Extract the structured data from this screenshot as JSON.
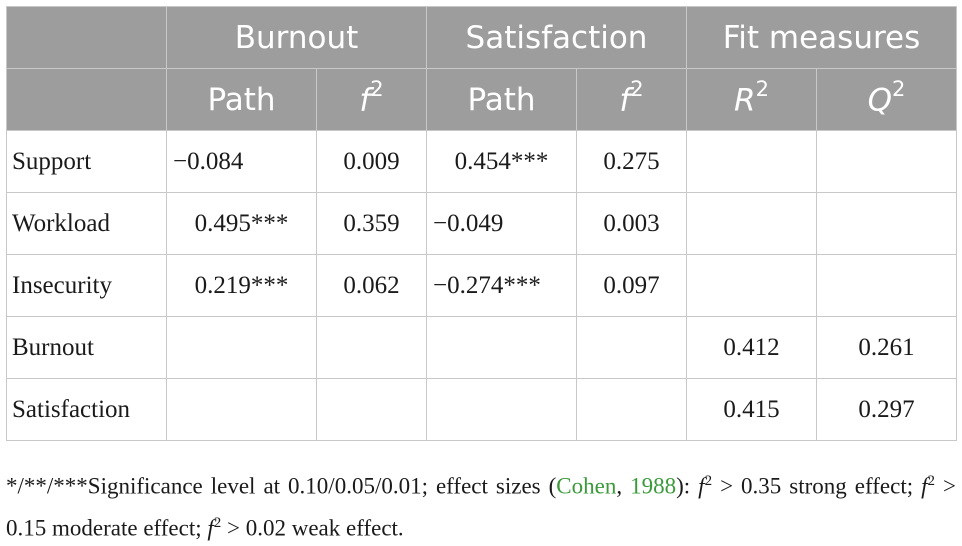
{
  "table": {
    "groups": {
      "burnout": "Burnout",
      "satisfaction": "Satisfaction",
      "fit": "Fit measures"
    },
    "subheaders": {
      "path": "Path",
      "f": "f",
      "R": "R",
      "Q": "Q",
      "sup2": "2"
    },
    "rows": [
      {
        "label": "Support",
        "b_path": "−0.084",
        "b_f2": "0.009",
        "s_path": "0.454***",
        "s_f2": "0.275",
        "r2": "",
        "q2": ""
      },
      {
        "label": "Workload",
        "b_path": "0.495***",
        "b_f2": "0.359",
        "s_path": "−0.049",
        "s_f2": "0.003",
        "r2": "",
        "q2": ""
      },
      {
        "label": "Insecurity",
        "b_path": "0.219***",
        "b_f2": "0.062",
        "s_path": "−0.274***",
        "s_f2": "0.097",
        "r2": "",
        "q2": ""
      },
      {
        "label": "Burnout",
        "b_path": "",
        "b_f2": "",
        "s_path": "",
        "s_f2": "",
        "r2": "0.412",
        "q2": "0.261"
      },
      {
        "label": "Satisfaction",
        "b_path": "",
        "b_f2": "",
        "s_path": "",
        "s_f2": "",
        "r2": "0.415",
        "q2": "0.297"
      }
    ]
  },
  "footnote": {
    "part1": "*/**/***Significance level at 0.10/0.05/0.01; effect sizes (",
    "cite_author": "Cohen",
    "comma": ", ",
    "cite_year": "1988",
    "part2": "): ",
    "f": "f",
    "sup2": "2",
    "t1": " > 0.35 strong effect; ",
    "t2": " > 0.15 moderate effect; ",
    "t3": " > 0.02 weak effect."
  }
}
